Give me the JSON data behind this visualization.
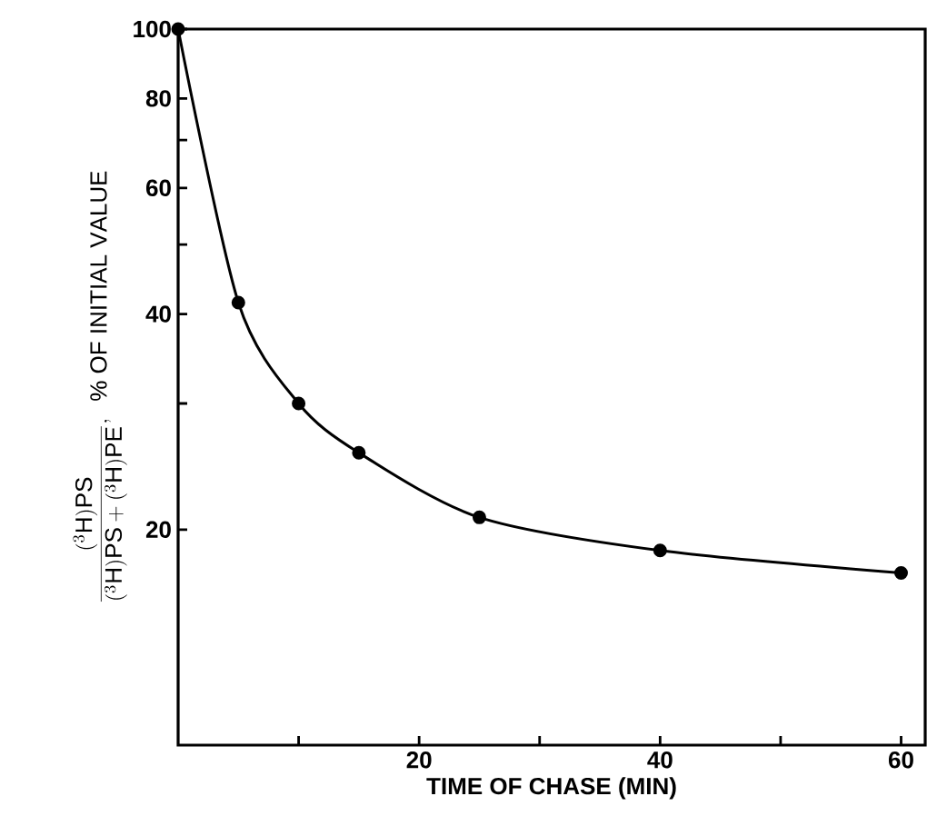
{
  "chart_data": {
    "type": "line",
    "xlabel": "TIME OF CHASE (MIN)",
    "ylabel": "\\frac{(^{3}\\mathsf{H})\\mathsf{PS}}{(^{3}\\mathsf{H})\\mathsf{PS}+(^{3}\\mathsf{H})\\mathsf{PE}},\\ \\ \\mathsf{\\%\\ OF\\ INITIAL\\ VALUE}",
    "series": [
      {
        "color": "#000000",
        "x": [
          0,
          5,
          10,
          15,
          25,
          40,
          60
        ],
        "values": [
          100,
          41.5,
          30,
          25.6,
          20.8,
          18.7,
          17.4
        ]
      }
    ],
    "xlim": [
      0,
      62
    ],
    "ylim": [
      10,
      100
    ],
    "log": true,
    "marker": "circle",
    "line_style": "solid",
    "xticks": [
      {
        "value": 10,
        "label": null
      },
      20,
      {
        "value": 30,
        "label": null
      },
      40,
      {
        "value": 50,
        "label": null
      },
      60
    ],
    "yticks": [
      20,
      {
        "value": 30,
        "label": null
      },
      40,
      {
        "value": 50,
        "label": null
      },
      60,
      {
        "value": 70,
        "label": null
      },
      80,
      100
    ]
  }
}
